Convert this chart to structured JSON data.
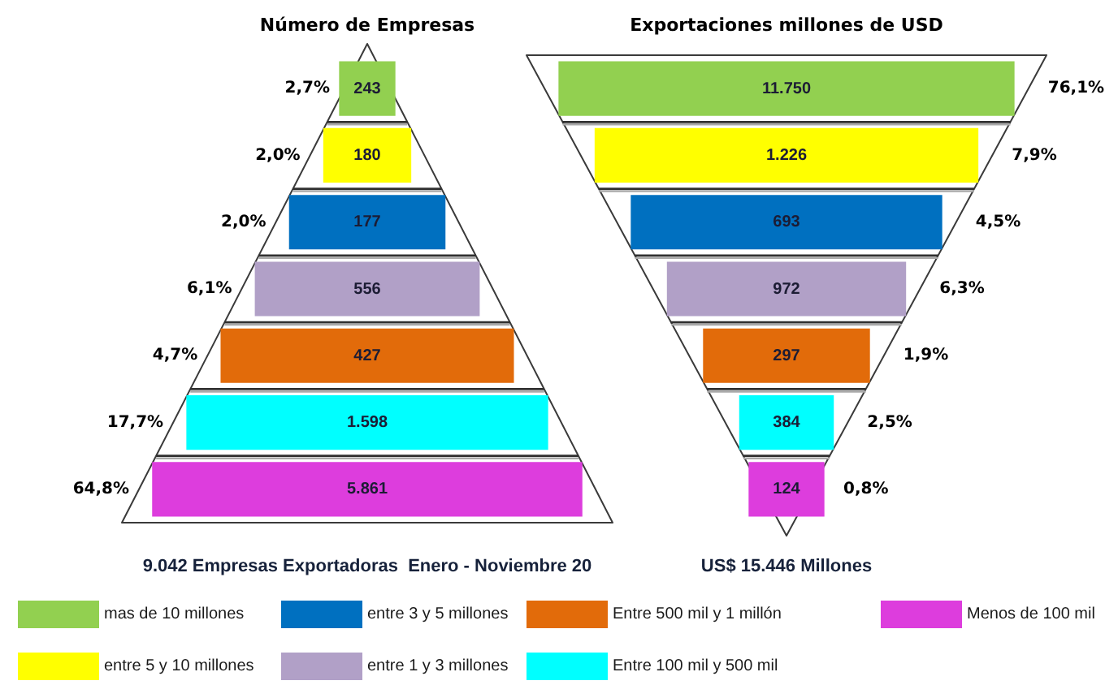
{
  "chart_data": {
    "type": "other",
    "categories": [
      "Número de Empresas",
      "Exportaciones millones de USD"
    ],
    "series": [
      {
        "name": "mas de 10 millones",
        "color": "#92d050",
        "values": [
          243,
          11750
        ],
        "value_labels": [
          "243",
          "11.750"
        ]
      },
      {
        "name": "entre 5 y 10 millones",
        "color": "#ffff00",
        "values": [
          180,
          1226
        ],
        "value_labels": [
          "180",
          "1.226"
        ]
      },
      {
        "name": "entre 3 y 5 millones",
        "color": "#0070c0",
        "values": [
          177,
          693
        ],
        "value_labels": [
          "177",
          "693"
        ]
      },
      {
        "name": "entre 1 y 3 millones",
        "color": "#b1a0c7",
        "values": [
          556,
          972
        ],
        "value_labels": [
          "556",
          "972"
        ]
      },
      {
        "name": "Entre 500 mil y 1 millón",
        "color": "#e26b0a",
        "values": [
          427,
          297
        ],
        "value_labels": [
          "427",
          "297"
        ]
      },
      {
        "name": "Entre 100 mil y 500 mil",
        "color": "#00ffff",
        "values": [
          1598,
          384
        ],
        "value_labels": [
          "1.598",
          "384"
        ]
      },
      {
        "name": "Menos de 100 mil",
        "color": "#dd3ddd",
        "values": [
          5861,
          124
        ],
        "value_labels": [
          "5.861",
          "124"
        ]
      }
    ],
    "annotations": [
      "2,7%",
      "2,0%",
      "2,0%",
      "6,1%",
      "4,7%",
      "17,7%",
      "64,8%",
      "76,1%",
      "7,9%",
      "4,5%",
      "6,3%",
      "1,9%",
      "2,5%",
      "0,8%",
      "9.042 Empresas Exportadoras  Enero - Noviembre 20",
      "US$ 15.446 Millones"
    ],
    "legend": "bottom"
  }
}
